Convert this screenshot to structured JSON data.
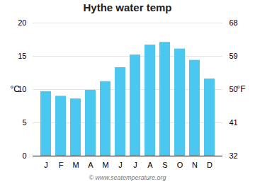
{
  "chart_data": {
    "type": "bar",
    "title": "Hythe water temp",
    "categories": [
      "J",
      "F",
      "M",
      "A",
      "M",
      "J",
      "J",
      "A",
      "S",
      "O",
      "N",
      "D"
    ],
    "values": [
      9.7,
      9.0,
      8.6,
      9.9,
      11.2,
      13.3,
      15.2,
      16.7,
      17.1,
      16.1,
      14.4,
      11.6
    ],
    "color": "#4cc8f0",
    "ylim": [
      0,
      20
    ],
    "yticks": [
      0,
      5,
      10,
      15,
      20
    ],
    "ylabel": "°C",
    "y2lim": [
      32,
      68
    ],
    "y2ticks": [
      32,
      41,
      50,
      59,
      68
    ],
    "y2label": "°F",
    "grid": true,
    "annotation": "© www.seatemperature.org"
  }
}
